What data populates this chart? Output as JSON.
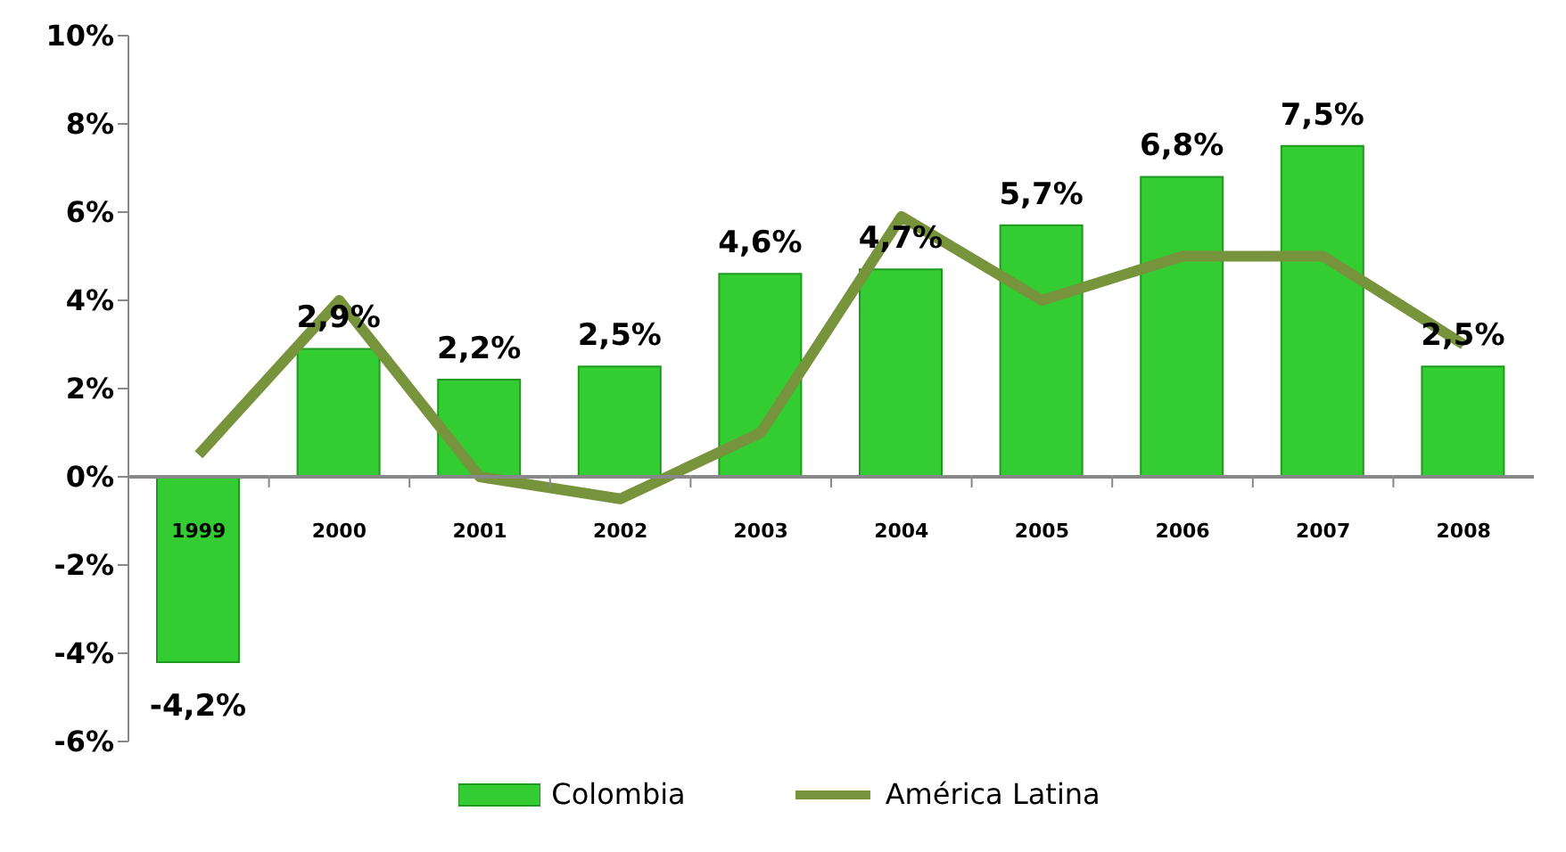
{
  "chart_data": {
    "type": "bar",
    "categories": [
      "1999",
      "2000",
      "2001",
      "2002",
      "2003",
      "2004",
      "2005",
      "2006",
      "2007",
      "2008"
    ],
    "series": [
      {
        "name": "Colombia",
        "color": "#33cc33",
        "values": [
          -4.2,
          2.9,
          2.2,
          2.5,
          4.6,
          4.7,
          5.7,
          6.8,
          7.5,
          2.5
        ],
        "value_labels": [
          "-4,2%",
          "2,9%",
          "2,2%",
          "2,5%",
          "4,6%",
          "4,7%",
          "5,7%",
          "6,8%",
          "7,5%",
          "2,5%"
        ]
      },
      {
        "name": "América Latina",
        "type": "line",
        "color": "#77933c",
        "values": [
          0.5,
          4.0,
          0.0,
          -0.5,
          1.0,
          5.9,
          4.0,
          5.0,
          5.0,
          3.0
        ]
      }
    ],
    "ylim": [
      -6,
      10
    ],
    "yticks": [
      {
        "value": -6,
        "label": "-6%"
      },
      {
        "value": -4,
        "label": "-4%"
      },
      {
        "value": -2,
        "label": "-2%"
      },
      {
        "value": 0,
        "label": "0%"
      },
      {
        "value": 2,
        "label": "2%"
      },
      {
        "value": 4,
        "label": "4%"
      },
      {
        "value": 6,
        "label": "6%"
      },
      {
        "value": 8,
        "label": "8%"
      },
      {
        "value": 10,
        "label": "10%"
      }
    ],
    "grid": false,
    "legend": "bottom",
    "marker": "none"
  }
}
